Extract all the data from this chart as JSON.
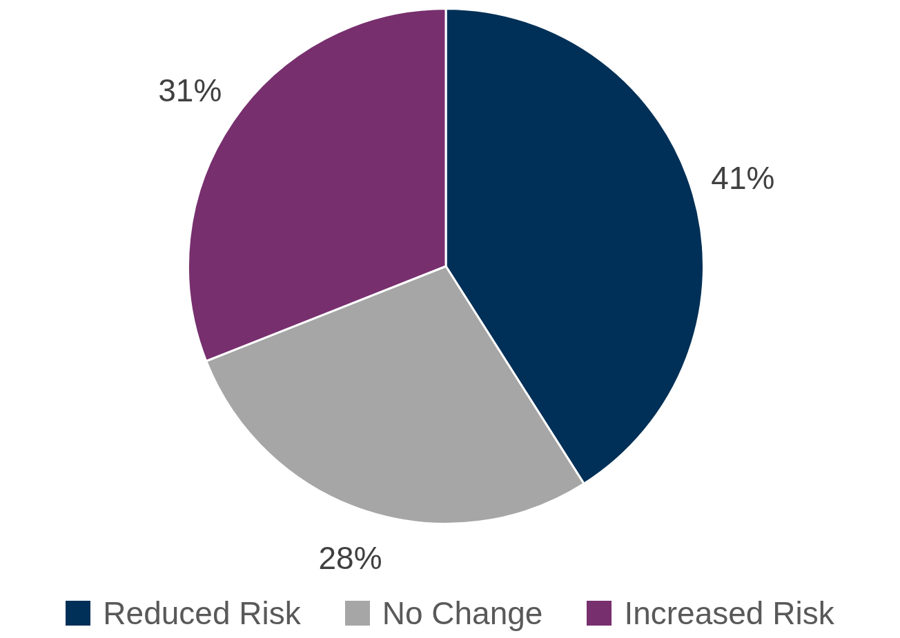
{
  "chart_data": {
    "type": "pie",
    "categories": [
      "Reduced Risk",
      "No Change",
      "Increased Risk"
    ],
    "values": [
      41,
      28,
      31
    ],
    "colors": [
      "#003057",
      "#a6a6a6",
      "#772f6e"
    ],
    "value_labels": [
      "41%",
      "28%",
      "31%"
    ],
    "legend": "bottom"
  }
}
